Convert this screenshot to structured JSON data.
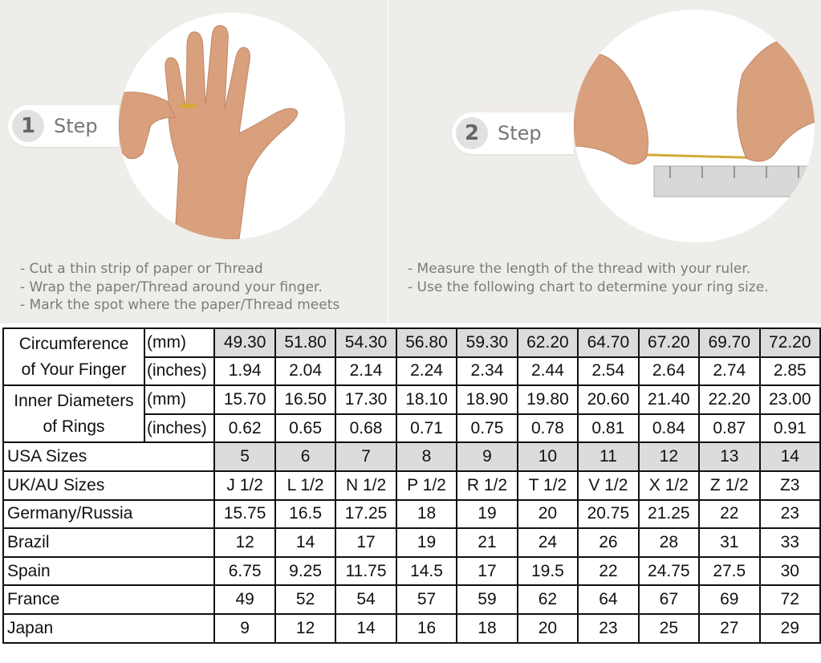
{
  "step1": {
    "number": "1",
    "label": "Step",
    "instructions": [
      "- Cut a thin strip of paper or Thread",
      "- Wrap the paper/Thread around your finger.",
      "- Mark the spot where the paper/Thread meets"
    ]
  },
  "step2": {
    "number": "2",
    "label": "Step",
    "instructions": [
      "- Measure the length of the thread with your ruler.",
      "- Use the following chart to determine your ring size."
    ]
  },
  "colors": {
    "background": "#efedea",
    "highlight_cell": "#dcdcdc",
    "border": "#111111"
  },
  "table": {
    "circumference": {
      "label_lines": [
        "Circumference",
        "of Your Finger"
      ],
      "mm": {
        "unit": "(mm)",
        "values": [
          "49.30",
          "51.80",
          "54.30",
          "56.80",
          "59.30",
          "62.20",
          "64.70",
          "67.20",
          "69.70",
          "72.20"
        ]
      },
      "inches": {
        "unit": "(inches)",
        "values": [
          "1.94",
          "2.04",
          "2.14",
          "2.24",
          "2.34",
          "2.44",
          "2.54",
          "2.64",
          "2.74",
          "2.85"
        ]
      }
    },
    "diameter": {
      "label_lines": [
        "Inner Diameters",
        "of Rings"
      ],
      "mm": {
        "unit": "(mm)",
        "values": [
          "15.70",
          "16.50",
          "17.30",
          "18.10",
          "18.90",
          "19.80",
          "20.60",
          "21.40",
          "22.20",
          "23.00"
        ]
      },
      "inches": {
        "unit": "(inches)",
        "values": [
          "0.62",
          "0.65",
          "0.68",
          "0.71",
          "0.75",
          "0.78",
          "0.81",
          "0.84",
          "0.87",
          "0.91"
        ]
      }
    },
    "rows": [
      {
        "label": "USA Sizes",
        "values": [
          "5",
          "6",
          "7",
          "8",
          "9",
          "10",
          "11",
          "12",
          "13",
          "14"
        ],
        "highlight": true
      },
      {
        "label": "UK/AU Sizes",
        "values": [
          "J 1/2",
          "L 1/2",
          "N 1/2",
          "P 1/2",
          "R 1/2",
          "T 1/2",
          "V 1/2",
          "X 1/2",
          "Z 1/2",
          "Z3"
        ]
      },
      {
        "label": "Germany/Russia",
        "values": [
          "15.75",
          "16.5",
          "17.25",
          "18",
          "19",
          "20",
          "20.75",
          "21.25",
          "22",
          "23"
        ]
      },
      {
        "label": "Brazil",
        "values": [
          "12",
          "14",
          "17",
          "19",
          "21",
          "24",
          "26",
          "28",
          "31",
          "33"
        ]
      },
      {
        "label": "Spain",
        "values": [
          "6.75",
          "9.25",
          "11.75",
          "14.5",
          "17",
          "19.5",
          "22",
          "24.75",
          "27.5",
          "30"
        ]
      },
      {
        "label": "France",
        "values": [
          "49",
          "52",
          "54",
          "57",
          "59",
          "62",
          "64",
          "67",
          "69",
          "72"
        ]
      },
      {
        "label": "Japan",
        "values": [
          "9",
          "12",
          "14",
          "16",
          "18",
          "20",
          "23",
          "25",
          "27",
          "29"
        ]
      }
    ]
  }
}
